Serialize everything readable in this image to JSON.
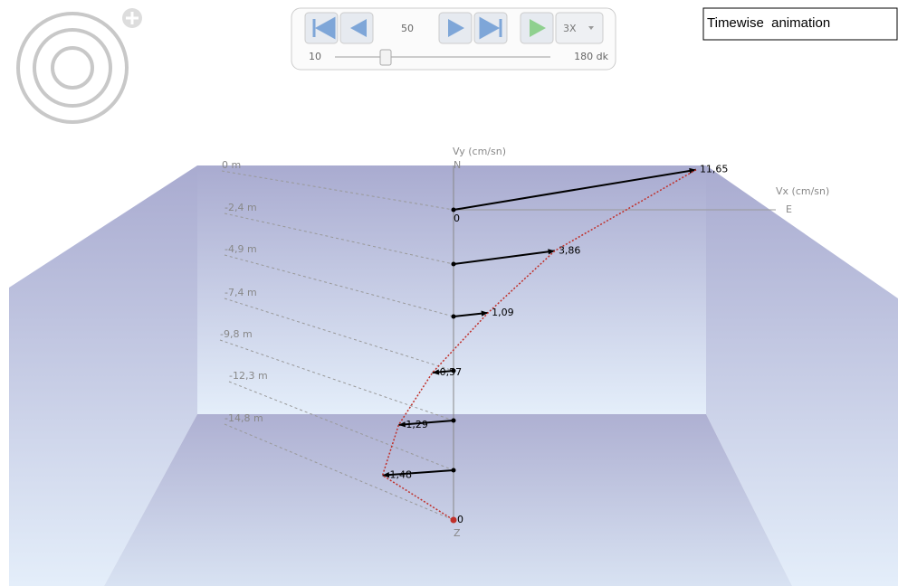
{
  "ui": {
    "frame_value": "50",
    "speed": "3X",
    "slider": {
      "min": 10,
      "max": 180,
      "max_label": "180 dk",
      "value": 50
    },
    "mode_label": "Timewise  animation"
  },
  "chart_data": {
    "type": "vector-profile",
    "x_label": "Vx (cm/sn)",
    "y_label": "Vy (cm/sn)",
    "east_label": "E",
    "north_label": "N",
    "z_label": "Z",
    "origin_label": "0",
    "depth_labels": [
      "0 m",
      "-2,4 m",
      "-4,9 m",
      "-7,4 m",
      "-9,8 m",
      "-12,3 m",
      "-14,8 m"
    ],
    "values": [
      11.65,
      3.86,
      1.09,
      -0.57,
      -1.29,
      -1.48,
      0
    ],
    "value_labels": [
      "11,65",
      "3,86",
      "1,09",
      "-0,57",
      "-1,29",
      "-1,48",
      "0"
    ],
    "color": "#000000",
    "curve_color": "#c0302a"
  }
}
